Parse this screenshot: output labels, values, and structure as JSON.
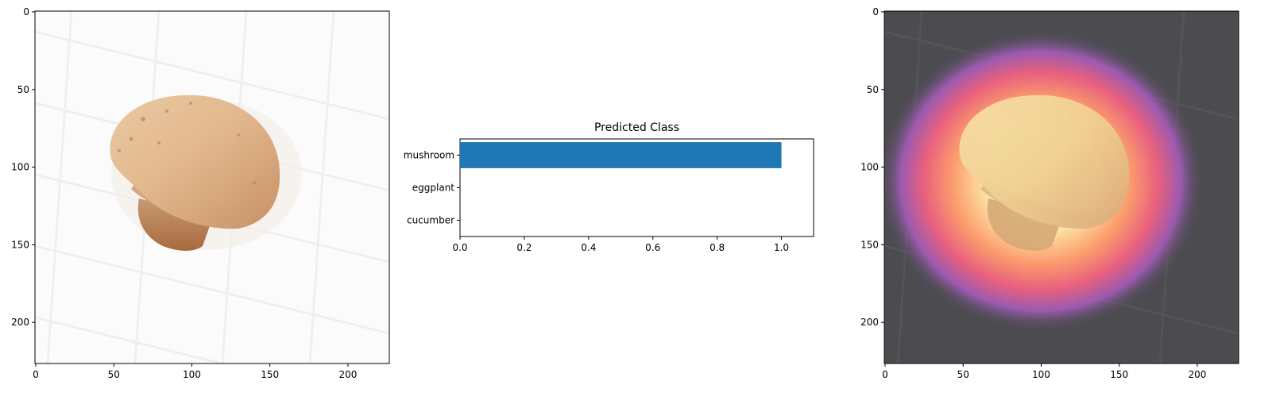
{
  "chart_data": [
    {
      "type": "image",
      "subject": "mushroom photo",
      "x_ticks": [
        0,
        50,
        100,
        150,
        200
      ],
      "y_ticks": [
        0,
        50,
        100,
        150,
        200
      ],
      "xlim": [
        -0.5,
        226.5
      ],
      "ylim": [
        226.5,
        -0.5
      ]
    },
    {
      "type": "bar",
      "orientation": "horizontal",
      "title": "Predicted Class",
      "categories": [
        "cucumber",
        "eggplant",
        "mushroom"
      ],
      "values": [
        0.0,
        0.0,
        1.0
      ],
      "xlim": [
        0,
        1.1
      ],
      "x_ticks": [
        0.0,
        0.2,
        0.4,
        0.6,
        0.8,
        1.0
      ],
      "bar_color": "#1f77b4"
    },
    {
      "type": "image",
      "subject": "mushroom photo with class activation heatmap overlay",
      "x_ticks": [
        0,
        50,
        100,
        150,
        200
      ],
      "y_ticks": [
        0,
        50,
        100,
        150,
        200
      ],
      "xlim": [
        -0.5,
        226.5
      ],
      "ylim": [
        226.5,
        -0.5
      ]
    }
  ]
}
